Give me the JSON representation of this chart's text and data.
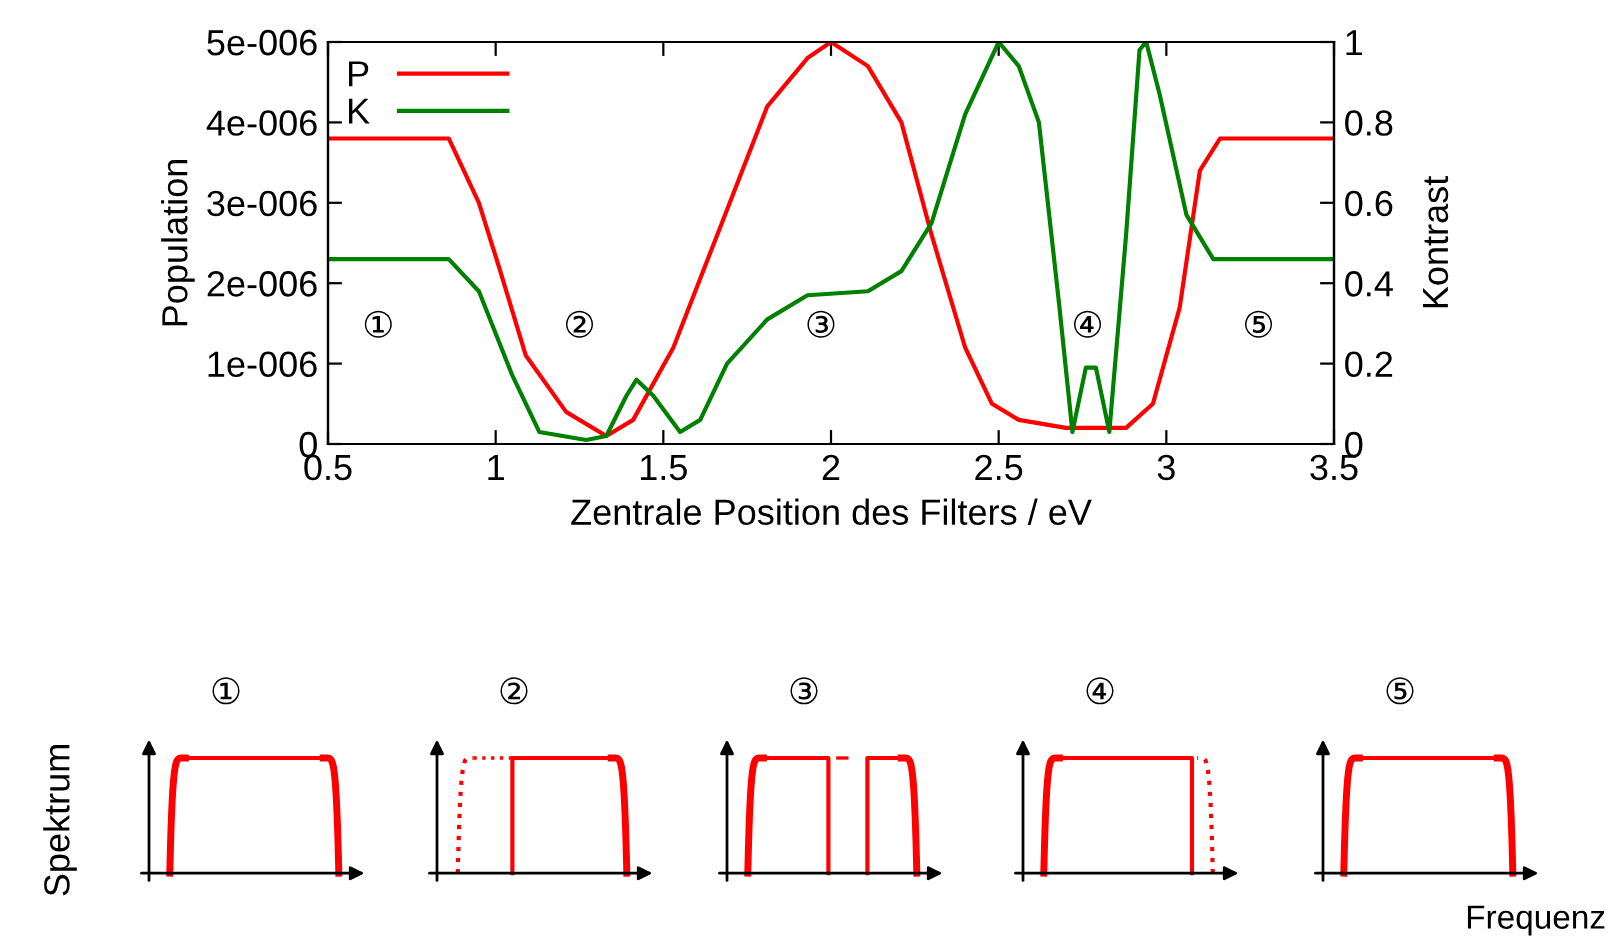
{
  "chart_data": [
    {
      "type": "line",
      "xlabel": "Zentrale Position des Filters / eV",
      "ylabel": "Population",
      "y2label": "Kontrast",
      "xlim": [
        0.5,
        3.5
      ],
      "xticks": [
        0.5,
        1,
        1.5,
        2,
        2.5,
        3,
        3.5
      ],
      "ylim": [
        0,
        5e-06
      ],
      "yticks": [
        {
          "value": 0,
          "label": "0"
        },
        {
          "value": 1e-06,
          "label": "1e-006"
        },
        {
          "value": 2e-06,
          "label": "2e-006"
        },
        {
          "value": 3e-06,
          "label": "3e-006"
        },
        {
          "value": 4e-06,
          "label": "4e-006"
        },
        {
          "value": 5e-06,
          "label": "5e-006"
        }
      ],
      "y2lim": [
        0,
        1
      ],
      "y2ticks": [
        0,
        0.2,
        0.4,
        0.6,
        0.8,
        1
      ],
      "legend": "top left",
      "grid": false,
      "series": [
        {
          "name": "P",
          "color": "#ff0000",
          "x": [
            0.5,
            0.86,
            0.95,
            1.01,
            1.09,
            1.21,
            1.33,
            1.41,
            1.53,
            1.67,
            1.81,
            1.93,
            2.0,
            2.11,
            2.21,
            2.3,
            2.4,
            2.48,
            2.56,
            2.7,
            2.88,
            2.96,
            3.04,
            3.1,
            3.16,
            3.5
          ],
          "values": [
            3.8e-06,
            3.8e-06,
            3e-06,
            2.2e-06,
            1.1e-06,
            4e-07,
            1e-07,
            3e-07,
            1.2e-06,
            2.7e-06,
            4.2e-06,
            4.8e-06,
            5e-06,
            4.7e-06,
            4e-06,
            2.6e-06,
            1.2e-06,
            5e-07,
            3e-07,
            2e-07,
            2e-07,
            5e-07,
            1.7e-06,
            3.4e-06,
            3.8e-06,
            3.8e-06
          ]
        },
        {
          "name": "K",
          "color": "#008000",
          "axis": "y2",
          "x": [
            0.5,
            0.86,
            0.95,
            1.05,
            1.13,
            1.27,
            1.33,
            1.39,
            1.42,
            1.47,
            1.55,
            1.61,
            1.69,
            1.81,
            1.93,
            2.11,
            2.21,
            2.3,
            2.4,
            2.5,
            2.56,
            2.62,
            2.68,
            2.72,
            2.76,
            2.79,
            2.83,
            2.88,
            2.92,
            2.94,
            2.98,
            3.06,
            3.14,
            3.5
          ],
          "values": [
            0.46,
            0.46,
            0.38,
            0.17,
            0.03,
            0.01,
            0.02,
            0.12,
            0.16,
            0.12,
            0.03,
            0.06,
            0.2,
            0.31,
            0.37,
            0.38,
            0.43,
            0.55,
            0.82,
            1.0,
            0.94,
            0.8,
            0.35,
            0.03,
            0.19,
            0.19,
            0.03,
            0.52,
            0.98,
            1.0,
            0.87,
            0.57,
            0.46,
            0.46
          ]
        }
      ],
      "annotations": [
        "①",
        "②",
        "③",
        "④",
        "⑤"
      ]
    },
    {
      "type": "other",
      "xlabel": "Frequenz",
      "ylabel": "Spektrum",
      "annotations": [
        "①",
        "②",
        "③",
        "④",
        "⑤"
      ]
    }
  ]
}
